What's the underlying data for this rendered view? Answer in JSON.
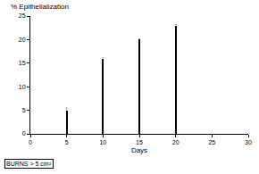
{
  "chart_data": {
    "type": "bar",
    "y_label": "% Epithelialization",
    "x_label": "Days",
    "x": [
      5,
      10,
      15,
      20
    ],
    "values": [
      5,
      16,
      20,
      23
    ],
    "color": "#000000",
    "xlim": [
      0,
      30
    ],
    "xticks": [
      0,
      5,
      10,
      15,
      20,
      25,
      30
    ],
    "ylim": [
      0,
      25
    ],
    "yticks": [
      0,
      5,
      10,
      15,
      20,
      25
    ],
    "grid": false,
    "data_labels": true,
    "annotations": [
      "BURNS > 5 cm²"
    ]
  }
}
